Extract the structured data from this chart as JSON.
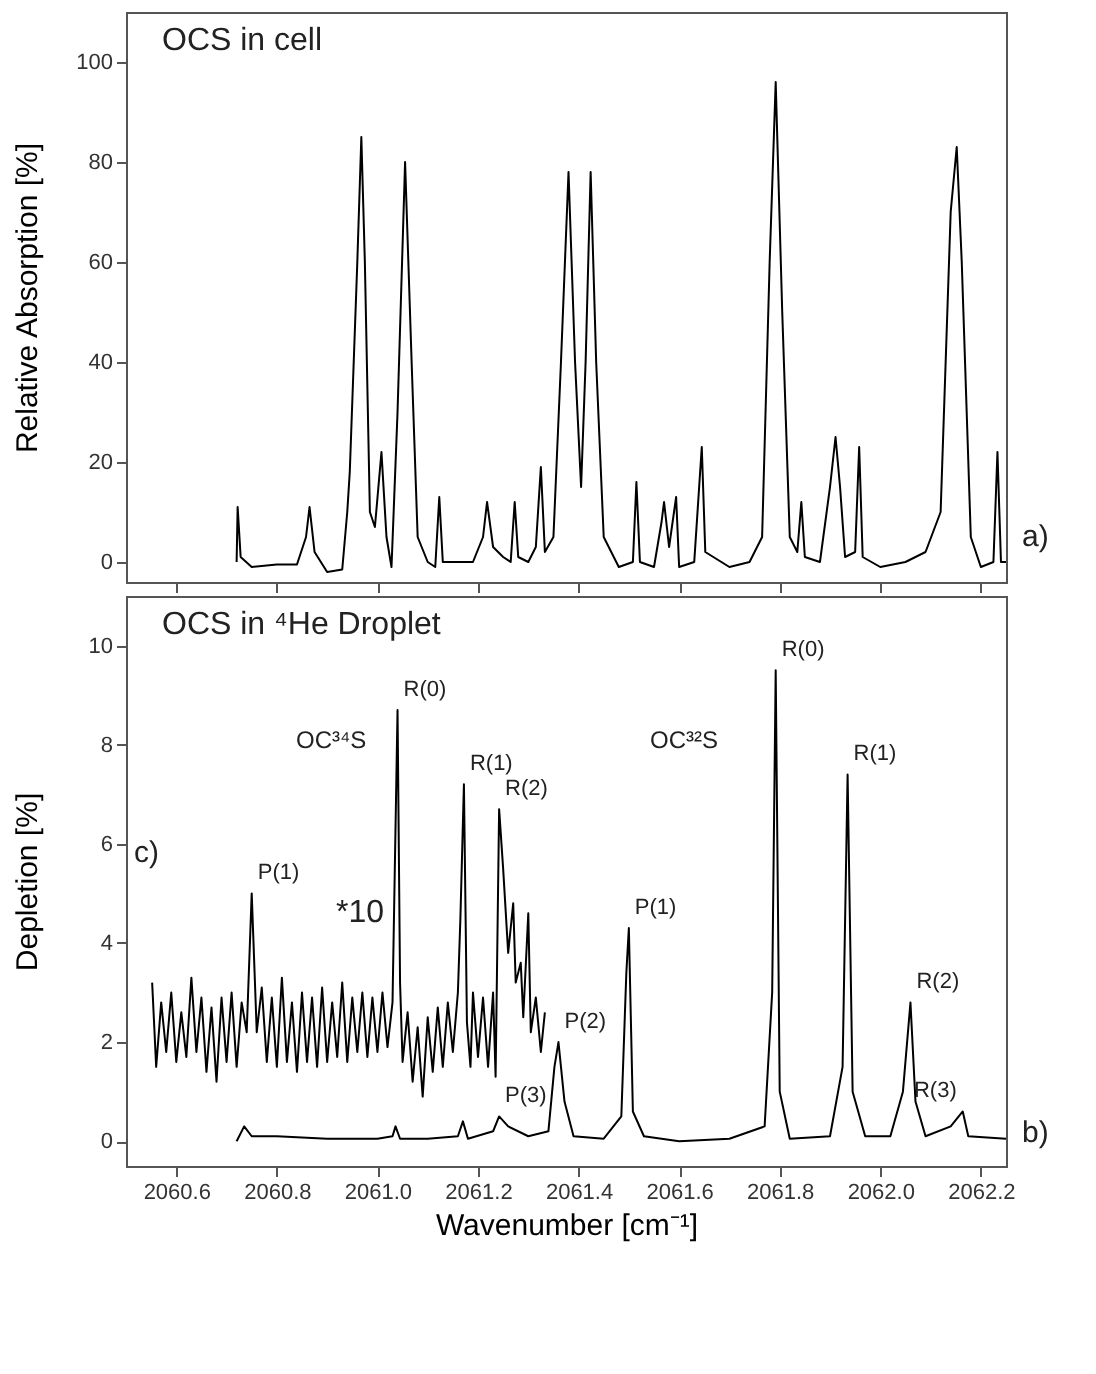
{
  "chart_data": [
    {
      "type": "line",
      "ylabel": "Relative Absorption [%]",
      "xlim": [
        2060.5,
        2062.25
      ],
      "xticks": [
        2060.6,
        2060.8,
        2061.0,
        2061.2,
        2061.4,
        2061.6,
        2061.8,
        2062.0,
        2062.2
      ],
      "ylim": [
        -4,
        110
      ],
      "yticks": [
        0,
        20,
        40,
        60,
        80,
        100
      ],
      "tick_labels": "y",
      "grid": false,
      "legend": false,
      "annotations": [
        "OCS in cell",
        "a)"
      ],
      "series": [
        {
          "color": "#000000",
          "x": [
            2060.72,
            2060.722,
            2060.728,
            2060.75,
            2060.8,
            2060.84,
            2060.858,
            2060.865,
            2060.875,
            2060.9,
            2060.93,
            2060.94,
            2060.945,
            2060.96,
            2060.968,
            2060.975,
            2060.985,
            2060.995,
            2061.008,
            2061.018,
            2061.028,
            2061.04,
            2061.055,
            2061.068,
            2061.08,
            2061.1,
            2061.115,
            2061.123,
            2061.13,
            2061.16,
            2061.19,
            2061.21,
            2061.218,
            2061.23,
            2061.25,
            2061.265,
            2061.273,
            2061.28,
            2061.3,
            2061.315,
            2061.325,
            2061.333,
            2061.35,
            2061.365,
            2061.38,
            2061.393,
            2061.405,
            2061.414,
            2061.424,
            2061.435,
            2061.45,
            2061.48,
            2061.508,
            2061.515,
            2061.522,
            2061.55,
            2061.565,
            2061.57,
            2061.58,
            2061.594,
            2061.6,
            2061.63,
            2061.645,
            2061.652,
            2061.7,
            2061.74,
            2061.765,
            2061.78,
            2061.792,
            2061.805,
            2061.82,
            2061.835,
            2061.843,
            2061.85,
            2061.88,
            2061.9,
            2061.911,
            2061.92,
            2061.93,
            2061.95,
            2061.958,
            2061.965,
            2062.0,
            2062.05,
            2062.09,
            2062.12,
            2062.14,
            2062.152,
            2062.162,
            2062.18,
            2062.2,
            2062.225,
            2062.233,
            2062.24,
            2062.25
          ],
          "values": [
            0,
            11,
            1,
            -1,
            -0.5,
            -0.5,
            5,
            11,
            2,
            -2,
            -1.5,
            10,
            18,
            60,
            85,
            60,
            10,
            7,
            22,
            5,
            -1,
            30,
            80,
            40,
            5,
            0,
            -1,
            13,
            0,
            0,
            0,
            5,
            12,
            3,
            1,
            0,
            12,
            1,
            0,
            3,
            19,
            2,
            5,
            40,
            78,
            40,
            15,
            40,
            78,
            40,
            5,
            -1,
            0,
            16,
            0,
            -1,
            8,
            12,
            3,
            13,
            -1,
            0,
            23,
            2,
            -1,
            0,
            5,
            60,
            96,
            50,
            5,
            2,
            12,
            1,
            0,
            15,
            25,
            15,
            1,
            2,
            23,
            1,
            -1,
            0,
            2,
            10,
            70,
            83,
            60,
            5,
            -1,
            0,
            22,
            0,
            0
          ]
        }
      ]
    },
    {
      "type": "line",
      "xlabel": "Wavenumber [cm⁻¹]",
      "ylabel": "Depletion [%]",
      "xlim": [
        2060.5,
        2062.25
      ],
      "xticks": [
        2060.6,
        2060.8,
        {
          "value": 2061,
          "label": "2061.0"
        },
        2061.2,
        2061.4,
        2061.6,
        2061.8,
        {
          "value": 2062,
          "label": "2062.0"
        },
        2062.2
      ],
      "ylim": [
        -0.5,
        11
      ],
      "yticks": [
        0,
        2,
        4,
        6,
        8,
        10
      ],
      "grid": false,
      "legend": false,
      "annotations": [
        "OCS in ⁴He Droplet",
        "b)",
        "c)",
        "*10",
        "OC³⁴S",
        "OC³²S",
        {
          "text": "P(1)",
          "x": 2060.75,
          "y": 5.0
        },
        {
          "text": "R(0)",
          "x": 2061.04,
          "y": 8.7
        },
        {
          "text": "R(1)",
          "x": 2061.172,
          "y": 7.2
        },
        {
          "text": "R(2)",
          "x": 2061.242,
          "y": 6.7
        },
        {
          "text": "P(3)",
          "x": 2061.242,
          "y": 0.5
        },
        {
          "text": "P(2)",
          "x": 2061.36,
          "y": 2.0
        },
        {
          "text": "P(1)",
          "x": 2061.5,
          "y": 4.3
        },
        {
          "text": "R(0)",
          "x": 2061.792,
          "y": 9.5
        },
        {
          "text": "R(1)",
          "x": 2061.935,
          "y": 7.4
        },
        {
          "text": "R(2)",
          "x": 2062.06,
          "y": 2.8
        },
        {
          "text": "R(3)",
          "x": 2062.164,
          "y": 0.6
        }
      ],
      "series": [
        {
          "color": "#000000",
          "x": [
            2060.72,
            2060.735,
            2060.75,
            2060.8,
            2060.9,
            2061.0,
            2061.03,
            2061.036,
            2061.045,
            2061.1,
            2061.16,
            2061.17,
            2061.18,
            2061.23,
            2061.242,
            2061.26,
            2061.3,
            2061.34,
            2061.352,
            2061.36,
            2061.372,
            2061.39,
            2061.45,
            2061.485,
            2061.495,
            2061.5,
            2061.508,
            2061.53,
            2061.6,
            2061.7,
            2061.77,
            2061.785,
            2061.792,
            2061.8,
            2061.82,
            2061.9,
            2061.925,
            2061.935,
            2061.945,
            2061.97,
            2062.02,
            2062.045,
            2062.06,
            2062.07,
            2062.09,
            2062.14,
            2062.164,
            2062.175,
            2062.25
          ],
          "values": [
            0,
            0.3,
            0.1,
            0.1,
            0.05,
            0.05,
            0.1,
            0.3,
            0.05,
            0.05,
            0.1,
            0.4,
            0.05,
            0.2,
            0.5,
            0.3,
            0.1,
            0.2,
            1.5,
            2.0,
            0.8,
            0.1,
            0.05,
            0.5,
            3.4,
            4.3,
            0.6,
            0.1,
            0,
            0.05,
            0.3,
            3,
            9.5,
            1,
            0.05,
            0.1,
            1.5,
            7.4,
            1.0,
            0.1,
            0.1,
            1.0,
            2.8,
            0.8,
            0.1,
            0.3,
            0.6,
            0.1,
            0.05
          ]
        },
        {
          "color": "#000000",
          "x": [
            2060.552,
            2060.56,
            2060.57,
            2060.58,
            2060.59,
            2060.6,
            2060.61,
            2060.62,
            2060.63,
            2060.64,
            2060.65,
            2060.66,
            2060.67,
            2060.68,
            2060.69,
            2060.7,
            2060.71,
            2060.72,
            2060.73,
            2060.74,
            2060.75,
            2060.76,
            2060.77,
            2060.78,
            2060.79,
            2060.8,
            2060.81,
            2060.82,
            2060.83,
            2060.84,
            2060.85,
            2060.86,
            2060.87,
            2060.88,
            2060.89,
            2060.9,
            2060.91,
            2060.92,
            2060.93,
            2060.94,
            2060.95,
            2060.96,
            2060.97,
            2060.98,
            2060.99,
            2061.0,
            2061.01,
            2061.02,
            2061.03,
            2061.04,
            2061.045,
            2061.05,
            2061.06,
            2061.07,
            2061.08,
            2061.09,
            2061.1,
            2061.11,
            2061.12,
            2061.13,
            2061.14,
            2061.15,
            2061.16,
            2061.165,
            2061.172,
            2061.178,
            2061.185,
            2061.19,
            2061.2,
            2061.21,
            2061.22,
            2061.23,
            2061.235,
            2061.242,
            2061.25,
            2061.26,
            2061.27,
            2061.275,
            2061.285,
            2061.29,
            2061.3,
            2061.305,
            2061.315,
            2061.325,
            2061.333
          ],
          "values": [
            3.2,
            1.5,
            2.8,
            1.8,
            3.0,
            1.6,
            2.6,
            1.7,
            3.3,
            1.8,
            2.9,
            1.4,
            2.7,
            1.2,
            2.9,
            1.6,
            3.0,
            1.5,
            2.8,
            2.2,
            5.0,
            2.2,
            3.1,
            1.6,
            2.9,
            1.5,
            3.3,
            1.6,
            2.8,
            1.4,
            3.0,
            1.6,
            2.9,
            1.5,
            3.1,
            1.6,
            2.8,
            1.7,
            3.2,
            1.6,
            2.9,
            1.8,
            3.0,
            1.7,
            2.9,
            1.8,
            3.0,
            1.9,
            2.8,
            8.7,
            3.2,
            1.6,
            2.6,
            1.2,
            2.3,
            0.9,
            2.5,
            1.4,
            2.7,
            1.5,
            2.8,
            1.8,
            3.0,
            4.5,
            7.2,
            2.4,
            1.5,
            3.0,
            1.7,
            2.9,
            1.5,
            3.0,
            1.3,
            6.7,
            5.5,
            3.8,
            4.8,
            3.2,
            3.6,
            2.5,
            4.6,
            2.2,
            2.9,
            1.8,
            2.6
          ]
        }
      ]
    }
  ]
}
